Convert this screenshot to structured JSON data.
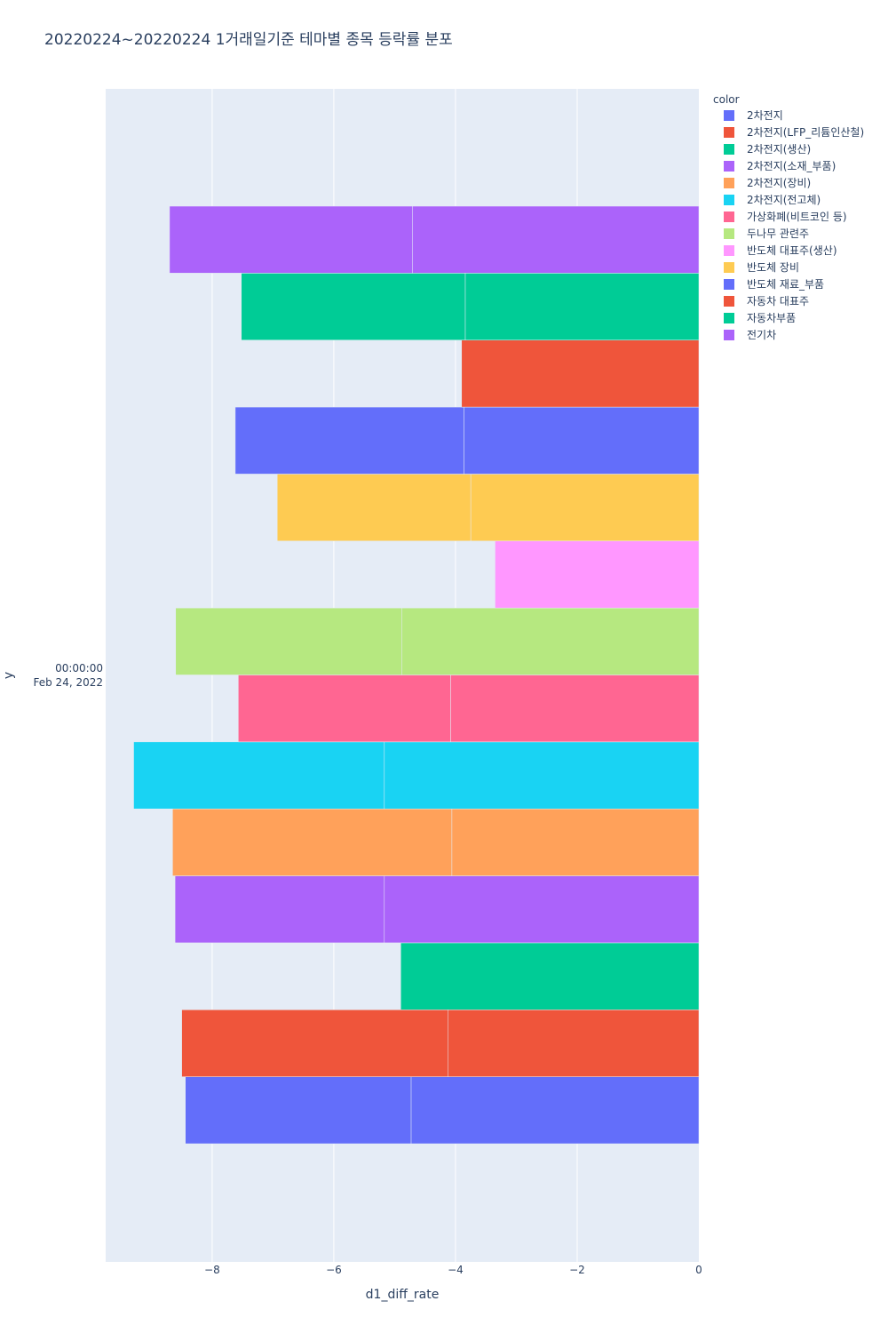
{
  "chart_data": {
    "type": "bar",
    "orientation": "horizontal",
    "barmode": "stack",
    "title": "20220224~20220224 1거래일기준 테마별 종목 등락률 분포",
    "xlabel": "d1_diff_rate",
    "ylabel": "y",
    "y_category": [
      "00:00:00",
      "Feb 24, 2022"
    ],
    "xlim": [
      -9.75,
      0
    ],
    "x_ticks": [
      -8,
      -6,
      -4,
      -2,
      0
    ],
    "x_tick_labels": [
      "−8",
      "−6",
      "−4",
      "−2",
      "0"
    ],
    "grid": true,
    "legend": {
      "title": "color",
      "placement": "top-right"
    },
    "series": [
      {
        "name": "2차전지",
        "color": "#636efa",
        "segments": [
          -4.73,
          -3.71
        ]
      },
      {
        "name": "2차전지(LFP_리튬인산철)",
        "color": "#ef553b",
        "segments": [
          -4.12,
          -4.38
        ]
      },
      {
        "name": "2차전지(생산)",
        "color": "#00cc96",
        "segments": [
          -4.9
        ]
      },
      {
        "name": "2차전지(소재_부품)",
        "color": "#ab63fa",
        "segments": [
          -5.17,
          -3.44
        ]
      },
      {
        "name": "2차전지(장비)",
        "color": "#ffa15a",
        "segments": [
          -4.06,
          -4.59
        ]
      },
      {
        "name": "2차전지(전고체)",
        "color": "#19d3f3",
        "segments": [
          -5.17,
          -4.12
        ]
      },
      {
        "name": "가상화폐(비트코인 등)",
        "color": "#ff6692",
        "segments": [
          -4.08,
          -3.49
        ]
      },
      {
        "name": "두나무 관련주",
        "color": "#b6e880",
        "segments": [
          -4.88,
          -3.72
        ]
      },
      {
        "name": "반도체 대표주(생산)",
        "color": "#ff97ff",
        "segments": [
          -3.35
        ]
      },
      {
        "name": "반도체 장비",
        "color": "#fecb52",
        "segments": [
          -3.75,
          -3.18
        ]
      },
      {
        "name": "반도체 재료_부품",
        "color": "#636efa",
        "segments": [
          -3.86,
          -3.76
        ]
      },
      {
        "name": "자동차 대표주",
        "color": "#ef553b",
        "segments": [
          -3.9
        ]
      },
      {
        "name": "자동차부품",
        "color": "#00cc96",
        "segments": [
          -3.84,
          -3.68
        ]
      },
      {
        "name": "전기차",
        "color": "#ab63fa",
        "segments": [
          -4.71,
          -3.99
        ]
      }
    ]
  }
}
